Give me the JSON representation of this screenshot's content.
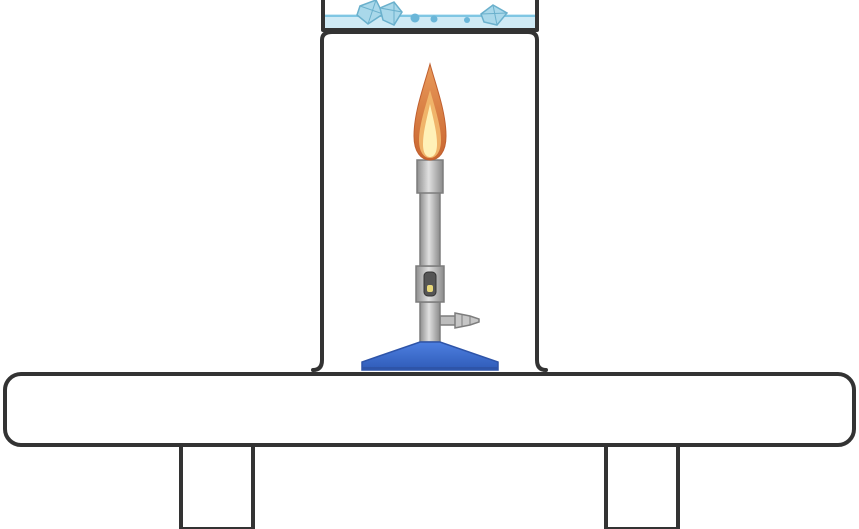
{
  "scene": {
    "background": "#ffffff",
    "outline_color": "#333333"
  },
  "table": {
    "surface_color": "#ffffff",
    "leg_count": 2
  },
  "tripod_stand": {
    "stroke_color": "#333333"
  },
  "beaker": {
    "glass_outline": "#333333",
    "liquid_color": "#cfeaf5",
    "liquid_surface_color": "#7fc6e3",
    "crystal_color": "#a9d8ea",
    "crystal_outline": "#6ab0cc",
    "crystal_count": 4,
    "bubble_count": 3,
    "bubble_color": "#6ab6d8"
  },
  "bunsen_burner": {
    "base_color": "#3f6fcf",
    "base_outline": "#2e54a8",
    "barrel_color": "#b7b7b7",
    "barrel_outline": "#7d7d7d",
    "air_hole_color": "#555555",
    "gas_inlet_color": "#bdbdbd"
  },
  "flame": {
    "outer_color": "#d9743b",
    "middle_color": "#f0b46a",
    "inner_color": "#fff1b8",
    "state": "lit"
  }
}
